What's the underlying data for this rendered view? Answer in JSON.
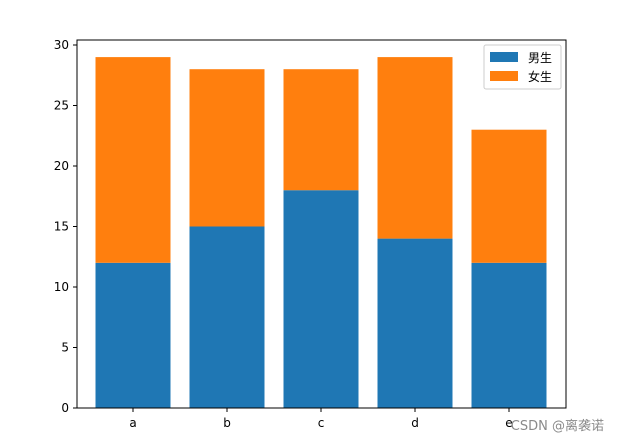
{
  "chart_data": {
    "type": "bar",
    "stacked": true,
    "categories": [
      "a",
      "b",
      "c",
      "d",
      "e"
    ],
    "series": [
      {
        "name": "男生",
        "values": [
          12,
          15,
          18,
          14,
          12
        ],
        "color": "#1f77b4"
      },
      {
        "name": "女生",
        "values": [
          17,
          13,
          10,
          15,
          11
        ],
        "color": "#ff7f0e"
      }
    ],
    "title": "",
    "xlabel": "",
    "ylabel": "",
    "ylim": [
      0,
      30
    ],
    "yticks": [
      0,
      5,
      10,
      15,
      20,
      25,
      30
    ],
    "grid": false,
    "legend_position": "top-right"
  },
  "watermark": "CSDN @离袭诺"
}
